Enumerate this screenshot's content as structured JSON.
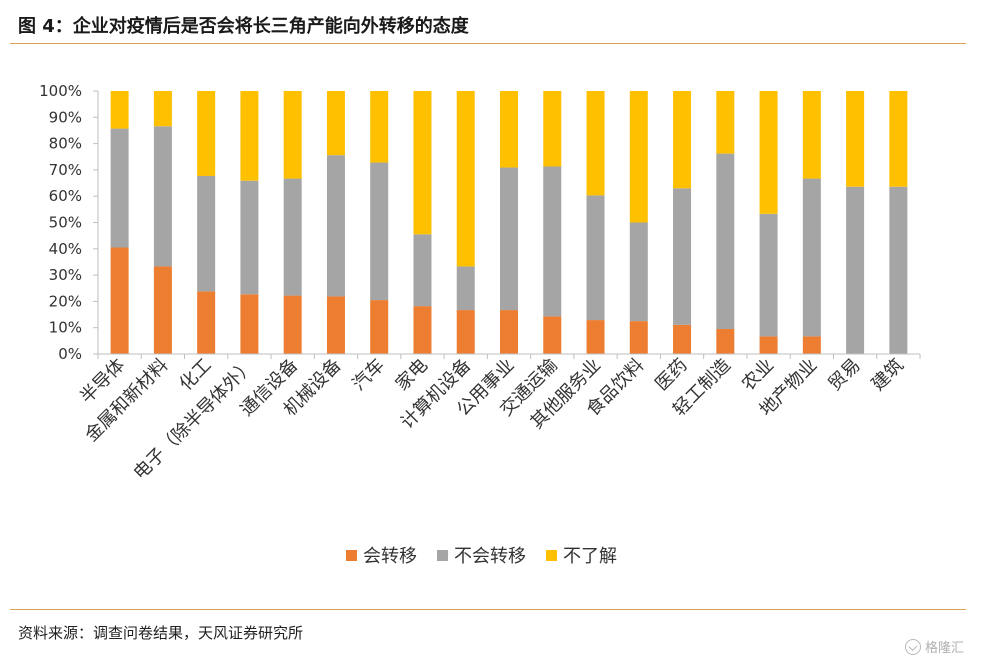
{
  "header": {
    "title": "图 4：企业对疫情后是否会将长三角产能向外转移的态度"
  },
  "footer": {
    "source": "资料来源：调查问卷结果，天风证券研究所",
    "watermark": "格隆汇"
  },
  "chart_data": {
    "type": "bar",
    "stacked": true,
    "title": "",
    "xlabel": "",
    "ylabel": "",
    "ylim": [
      0,
      100
    ],
    "y_ticks": [
      "0%",
      "10%",
      "20%",
      "30%",
      "40%",
      "50%",
      "60%",
      "70%",
      "80%",
      "90%",
      "100%"
    ],
    "grid": false,
    "legend_position": "bottom",
    "categories": [
      "半导体",
      "金属和新材料",
      "化工",
      "电子（除半导体外）",
      "通信设备",
      "机械设备",
      "汽车",
      "家电",
      "计算机设备",
      "公用事业",
      "交通运输",
      "其他服务业",
      "食品饮料",
      "医药",
      "轻工制造",
      "农业",
      "地产物业",
      "贸易",
      "建筑"
    ],
    "series": [
      {
        "name": "会转移",
        "color": "#ed7d31",
        "values": [
          40.5,
          33.3,
          23.8,
          22.7,
          22.2,
          21.9,
          20.5,
          18.2,
          16.7,
          16.7,
          14.3,
          12.9,
          12.5,
          11.1,
          9.5,
          6.7,
          6.7,
          0,
          0
        ]
      },
      {
        "name": "不会转移",
        "color": "#a5a5a5",
        "values": [
          45.2,
          53.3,
          43.9,
          43.2,
          44.5,
          53.7,
          52.3,
          27.3,
          16.6,
          54.2,
          57.0,
          47.4,
          37.5,
          51.9,
          66.7,
          46.6,
          60.0,
          63.6,
          63.6
        ]
      },
      {
        "name": "不了解",
        "color": "#ffc000",
        "values": [
          14.3,
          13.4,
          32.3,
          34.1,
          33.3,
          24.4,
          27.2,
          54.5,
          66.7,
          29.1,
          28.7,
          39.7,
          50.0,
          37.0,
          23.8,
          46.7,
          33.3,
          36.4,
          36.4
        ]
      }
    ]
  }
}
